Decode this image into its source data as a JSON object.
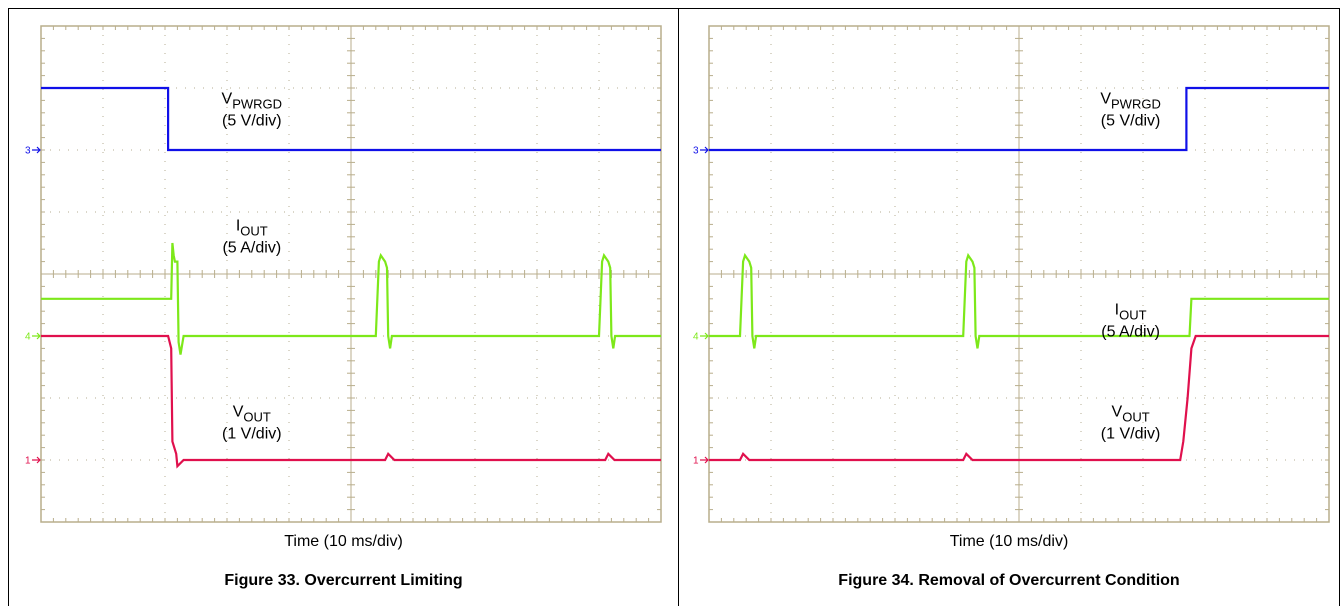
{
  "colors": {
    "background": "#ffffff",
    "grid_border": "#b8ae8c",
    "grid_dot": "#b4ad93",
    "vpwrgd": "#1010e8",
    "iout": "#7de81a",
    "vout": "#e0104d"
  },
  "chart_data": [
    {
      "type": "line",
      "title": "Figure 33. Overcurrent Limiting",
      "xlabel": "Time (10 ms/div)",
      "x_unit": "divisions",
      "xlim": [
        0,
        10
      ],
      "ylim": [
        0,
        8
      ],
      "grid": true,
      "channel_markers": [
        {
          "label": "3",
          "level": 6,
          "color": "#1010e8"
        },
        {
          "label": "4",
          "level": 3,
          "color": "#7de81a"
        },
        {
          "label": "1",
          "level": 1,
          "color": "#e0104d"
        }
      ],
      "annotations": [
        {
          "main": "V",
          "sub": "PWRGD",
          "scale": "(5 V/div)",
          "x": 3.4,
          "y": 6.75
        },
        {
          "main": "I",
          "sub": "OUT",
          "scale": "(5 A/div)",
          "x": 3.4,
          "y": 4.7
        },
        {
          "main": "V",
          "sub": "OUT",
          "scale": "(1 V/div)",
          "x": 3.4,
          "y": 1.7
        }
      ],
      "series": [
        {
          "name": "VPWRGD",
          "scale": "5 V/div",
          "color": "#1010e8",
          "x": [
            0,
            2.05,
            2.05,
            10
          ],
          "y": [
            7.0,
            7.0,
            6.0,
            6.0
          ]
        },
        {
          "name": "IOUT",
          "scale": "5 A/div",
          "color": "#7de81a",
          "x": [
            0,
            2.1,
            2.12,
            2.14,
            2.16,
            2.2,
            2.22,
            2.25,
            2.3,
            2.5,
            5.4,
            5.45,
            5.48,
            5.55,
            5.58,
            5.6,
            5.63,
            5.66,
            9.0,
            9.05,
            9.08,
            9.15,
            9.18,
            9.2,
            9.23,
            9.26,
            10
          ],
          "y": [
            3.6,
            3.6,
            4.5,
            4.3,
            4.2,
            4.2,
            2.9,
            2.7,
            3.0,
            3.0,
            3.0,
            4.2,
            4.3,
            4.2,
            4.1,
            3.0,
            2.8,
            3.0,
            3.0,
            4.2,
            4.3,
            4.2,
            4.1,
            3.0,
            2.8,
            3.0,
            3.0
          ]
        },
        {
          "name": "VOUT",
          "scale": "1 V/div",
          "color": "#e0104d",
          "x": [
            0,
            2.05,
            2.1,
            2.12,
            2.18,
            2.2,
            2.3,
            2.4,
            2.6,
            5.55,
            5.6,
            5.7,
            5.8,
            9.1,
            9.15,
            9.25,
            9.35,
            10
          ],
          "y": [
            3.0,
            3.0,
            2.8,
            1.3,
            1.1,
            0.9,
            1.0,
            1.0,
            1.0,
            1.0,
            1.1,
            1.0,
            1.0,
            1.0,
            1.1,
            1.0,
            1.0,
            1.0
          ]
        }
      ]
    },
    {
      "type": "line",
      "title": "Figure 34. Removal of Overcurrent Condition",
      "xlabel": "Time (10 ms/div)",
      "x_unit": "divisions",
      "xlim": [
        0,
        10
      ],
      "ylim": [
        0,
        8
      ],
      "grid": true,
      "channel_markers": [
        {
          "label": "3",
          "level": 6,
          "color": "#1010e8"
        },
        {
          "label": "4",
          "level": 3,
          "color": "#7de81a"
        },
        {
          "label": "1",
          "level": 1,
          "color": "#e0104d"
        }
      ],
      "annotations": [
        {
          "main": "V",
          "sub": "PWRGD",
          "scale": "(5 V/div)",
          "x": 6.8,
          "y": 6.75
        },
        {
          "main": "I",
          "sub": "OUT",
          "scale": "(5 A/div)",
          "x": 6.8,
          "y": 3.35
        },
        {
          "main": "V",
          "sub": "OUT",
          "scale": "(1 V/div)",
          "x": 6.8,
          "y": 1.7
        }
      ],
      "series": [
        {
          "name": "VPWRGD",
          "scale": "5 V/div",
          "color": "#1010e8",
          "x": [
            0,
            7.7,
            7.7,
            10
          ],
          "y": [
            6.0,
            6.0,
            7.0,
            7.0
          ]
        },
        {
          "name": "IOUT",
          "scale": "5 A/div",
          "color": "#7de81a",
          "x": [
            0,
            0.5,
            0.55,
            0.58,
            0.65,
            0.68,
            0.7,
            0.73,
            0.76,
            4.1,
            4.15,
            4.18,
            4.25,
            4.28,
            4.3,
            4.33,
            4.36,
            7.75,
            7.78,
            10
          ],
          "y": [
            3.0,
            3.0,
            4.2,
            4.3,
            4.2,
            4.1,
            3.0,
            2.8,
            3.0,
            3.0,
            4.2,
            4.3,
            4.2,
            4.1,
            3.0,
            2.8,
            3.0,
            3.0,
            3.6,
            3.6
          ]
        },
        {
          "name": "VOUT",
          "scale": "1 V/div",
          "color": "#e0104d",
          "x": [
            0,
            0.5,
            0.55,
            0.65,
            0.75,
            4.1,
            4.15,
            4.25,
            4.35,
            7.6,
            7.65,
            7.72,
            7.78,
            7.85,
            10
          ],
          "y": [
            1.0,
            1.0,
            1.1,
            1.0,
            1.0,
            1.0,
            1.1,
            1.0,
            1.0,
            1.0,
            1.3,
            2.0,
            2.8,
            3.0,
            3.0
          ]
        }
      ]
    }
  ]
}
